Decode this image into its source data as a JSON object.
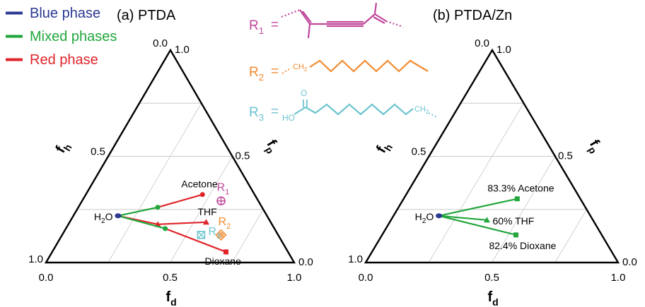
{
  "legend": {
    "position": "top-left",
    "items": [
      {
        "label": "Blue phase",
        "color": "#2b3990"
      },
      {
        "label": "Mixed phases",
        "color": "#22a63c"
      },
      {
        "label": "Red phase",
        "color": "#e0242a"
      }
    ]
  },
  "structures": {
    "r1": {
      "label": "R",
      "sub": "1",
      "eq": "=",
      "color": "#c0479a"
    },
    "r2": {
      "label": "R",
      "sub": "2",
      "eq": "=",
      "group": "CH",
      "group_sub": "2",
      "color": "#f28a2e"
    },
    "r3": {
      "label": "R",
      "sub": "3",
      "eq": "=",
      "head": "HO",
      "carbonyl": "O",
      "group": "CH",
      "group_sub": "2",
      "color": "#6cc5cf"
    }
  },
  "colors": {
    "blue": "#2b3990",
    "green": "#22a63c",
    "red": "#e0242a",
    "r1": "#c0479a",
    "r2": "#f28a2e",
    "r3": "#6cc5cf",
    "grid": "#c8c8c8",
    "axis": "#000000"
  },
  "chart_data": [
    {
      "type": "scatter",
      "title": "(a) PTDA",
      "plot": "ternary",
      "axes": {
        "bottom": {
          "label": "f",
          "sub": "d",
          "ticks": [
            "0.0",
            "0.5",
            "1.0"
          ]
        },
        "left": {
          "label": "f",
          "sub": "h",
          "ticks": [
            "1.0",
            "0.5",
            "0.0"
          ]
        },
        "right": {
          "label": "f",
          "sub": "p",
          "ticks": [
            "1.0",
            "0.5",
            "0.0"
          ]
        }
      },
      "grid": true,
      "origin_point": {
        "name": "H2O",
        "label": "H",
        "sub": "2",
        "tail": "O",
        "fd": 0.18,
        "fp": 0.22,
        "color": "#2b3990"
      },
      "solvents": [
        {
          "name": "Acetone",
          "fd": 0.47,
          "fp": 0.32,
          "mid": {
            "fd": 0.32,
            "fp": 0.26
          },
          "end_color": "#e0242a",
          "segs": [
            "#22a63c",
            "#e0242a"
          ]
        },
        {
          "name": "THF",
          "fd": 0.55,
          "fp": 0.19,
          "mid": {
            "fd": 0.36,
            "fp": 0.18
          },
          "end_color": "#e0242a",
          "segs": [
            "#e0242a",
            "#e0242a"
          ]
        },
        {
          "name": "Dioxane",
          "fd": 0.7,
          "fp": 0.05,
          "mid": {
            "fd": 0.4,
            "fp": 0.16
          },
          "end_color": "#e0242a",
          "segs": [
            "#22a63c",
            "#e0242a"
          ]
        }
      ],
      "markers": [
        {
          "name": "R1",
          "label": "R",
          "sub": "1",
          "fd": 0.56,
          "fp": 0.29,
          "color": "#c0479a",
          "shape": "circle-plus"
        },
        {
          "name": "R2",
          "label": "R",
          "sub": "2",
          "fd": 0.64,
          "fp": 0.13,
          "color": "#f28a2e",
          "shape": "diamond-plus"
        },
        {
          "name": "R3",
          "label": "R",
          "sub": "3",
          "fd": 0.56,
          "fp": 0.13,
          "color": "#6cc5cf",
          "shape": "square-x"
        }
      ]
    },
    {
      "type": "scatter",
      "title": "(b) PTDA/Zn",
      "plot": "ternary",
      "axes": {
        "bottom": {
          "label": "f",
          "sub": "d",
          "ticks": [
            "0.0",
            "0.5",
            "1.0"
          ]
        },
        "left": {
          "label": "f",
          "sub": "h",
          "ticks": [
            "1.0",
            "0.5",
            "0.0"
          ]
        },
        "right": {
          "label": "f",
          "sub": "p",
          "ticks": [
            "1.0",
            "0.5",
            "0.0"
          ]
        }
      },
      "grid": true,
      "origin_point": {
        "name": "H2O",
        "label": "H",
        "sub": "2",
        "tail": "O",
        "fd": 0.18,
        "fp": 0.22,
        "color": "#2b3990"
      },
      "solvents": [
        {
          "name": "83.3% Acetone",
          "fd": 0.45,
          "fp": 0.3,
          "color": "#22a63c",
          "marker": "square"
        },
        {
          "name": "60% THF",
          "fd": 0.38,
          "fp": 0.2,
          "color": "#22a63c",
          "marker": "triangle"
        },
        {
          "name": "82.4% Dioxane",
          "fd": 0.53,
          "fp": 0.13,
          "color": "#22a63c",
          "marker": "square"
        }
      ]
    }
  ]
}
